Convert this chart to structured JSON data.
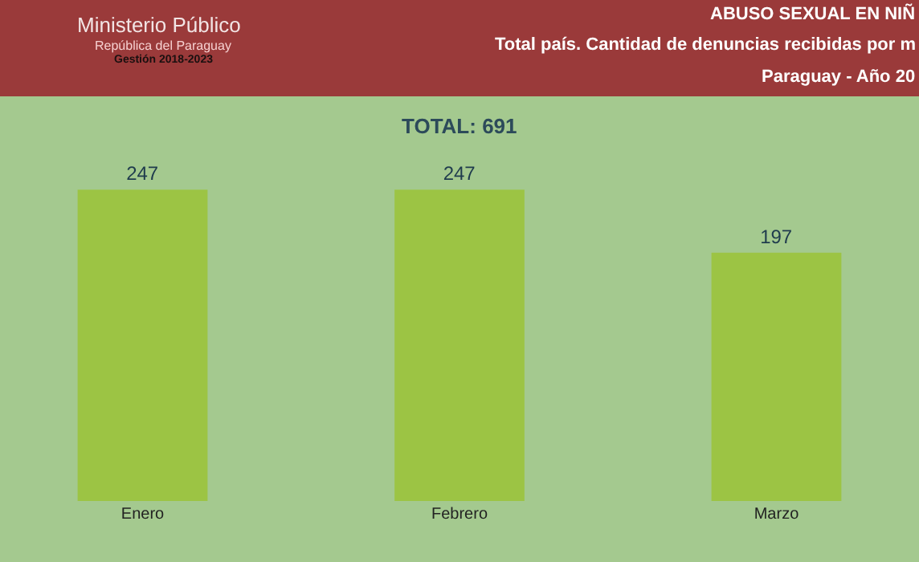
{
  "chart_data": {
    "type": "bar",
    "title": "ABUSO SEXUAL EN NIÑ",
    "subtitle": "Total país. Cantidad de denuncias recibidas por m",
    "annotations": [
      "Paraguay - Año 20",
      "Ministerio Público",
      "República del Paraguay",
      "Gestión 2018-2023",
      "TOTAL: 691"
    ],
    "categories": [
      "Enero",
      "Febrero",
      "Marzo"
    ],
    "values": [
      247,
      247,
      197
    ],
    "color": "#9cc444",
    "data_labels": true,
    "grid": false,
    "legend": false
  }
}
